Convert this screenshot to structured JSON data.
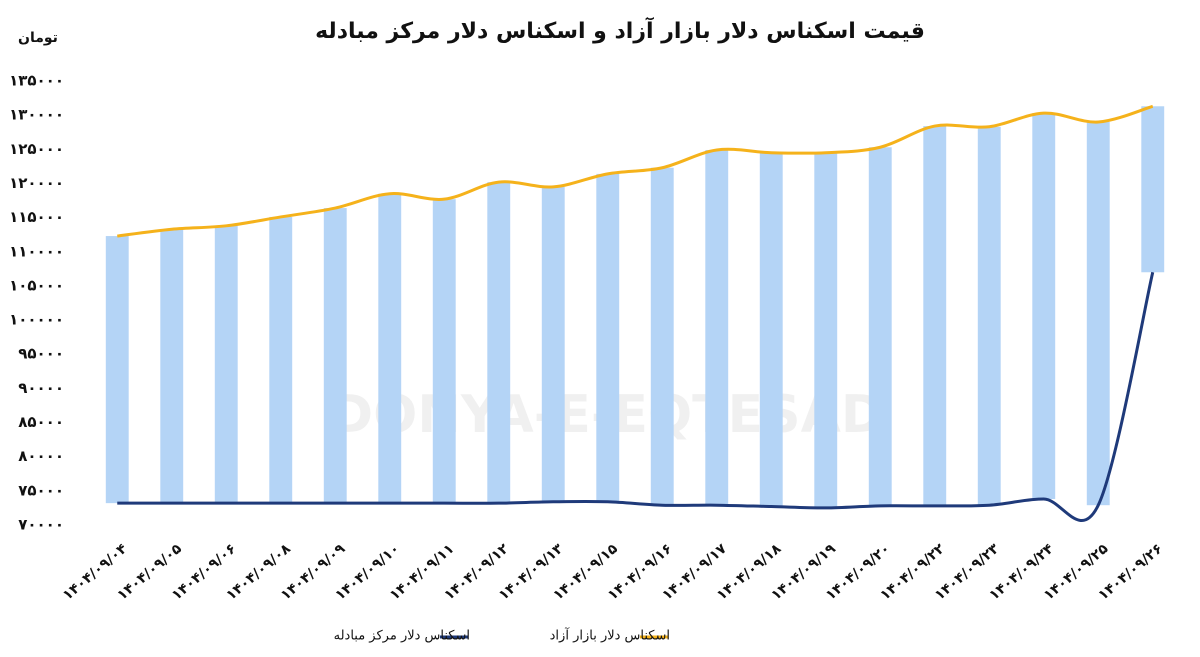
{
  "chart_data": {
    "type": "line",
    "title": "قیمت اسکناس دلار بازار آزاد و اسکناس دلار مرکز مبادله",
    "y_unit": "تومان",
    "watermark": "DONYA-E-EQTESAD",
    "categories": [
      "۱۴۰۴/۰۹/۰۴",
      "۱۴۰۴/۰۹/۰۵",
      "۱۴۰۴/۰۹/۰۶",
      "۱۴۰۴/۰۹/۰۸",
      "۱۴۰۴/۰۹/۰۹",
      "۱۴۰۴/۰۹/۱۰",
      "۱۴۰۴/۰۹/۱۱",
      "۱۴۰۴/۰۹/۱۲",
      "۱۴۰۴/۰۹/۱۳",
      "۱۴۰۴/۰۹/۱۵",
      "۱۴۰۴/۰۹/۱۶",
      "۱۴۰۴/۰۹/۱۷",
      "۱۴۰۴/۰۹/۱۸",
      "۱۴۰۴/۰۹/۱۹",
      "۱۴۰۴/۰۹/۲۰",
      "۱۴۰۴/۰۹/۲۲",
      "۱۴۰۴/۰۹/۲۳",
      "۱۴۰۴/۰۹/۲۴",
      "۱۴۰۴/۰۹/۲۵",
      "۱۴۰۴/۰۹/۲۶"
    ],
    "series": [
      {
        "name": "اسکناس دلار مرکز مبادله",
        "color": "#1f3a7a",
        "values": [
          73200,
          73200,
          73200,
          73200,
          73200,
          73200,
          73200,
          73200,
          73400,
          73400,
          72900,
          72900,
          72700,
          72500,
          72800,
          72800,
          72900,
          73800,
          72900,
          107000
        ]
      },
      {
        "name": "اسکناس دلار بازار آزاد",
        "color": "#f5b21b",
        "values": [
          112300,
          113300,
          113800,
          115100,
          116400,
          118500,
          117700,
          120200,
          119500,
          121400,
          122300,
          124900,
          124500,
          124500,
          125300,
          128400,
          128300,
          130300,
          129000,
          131300
        ]
      }
    ],
    "range_bars": {
      "color": "#b4d4f6"
    },
    "ylim": [
      70000,
      135000
    ],
    "yticks": [
      {
        "value": 70000,
        "label": "۷۰۰۰۰"
      },
      {
        "value": 75000,
        "label": "۷۵۰۰۰"
      },
      {
        "value": 80000,
        "label": "۸۰۰۰۰"
      },
      {
        "value": 85000,
        "label": "۸۵۰۰۰"
      },
      {
        "value": 90000,
        "label": "۹۰۰۰۰"
      },
      {
        "value": 95000,
        "label": "۹۵۰۰۰"
      },
      {
        "value": 100000,
        "label": "۱۰۰۰۰۰"
      },
      {
        "value": 105000,
        "label": "۱۰۵۰۰۰"
      },
      {
        "value": 110000,
        "label": "۱۱۰۰۰۰"
      },
      {
        "value": 115000,
        "label": "۱۱۵۰۰۰"
      },
      {
        "value": 120000,
        "label": "۱۲۰۰۰۰"
      },
      {
        "value": 125000,
        "label": "۱۲۵۰۰۰"
      },
      {
        "value": 130000,
        "label": "۱۳۰۰۰۰"
      },
      {
        "value": 135000,
        "label": "۱۳۵۰۰۰"
      }
    ],
    "grid": false
  }
}
